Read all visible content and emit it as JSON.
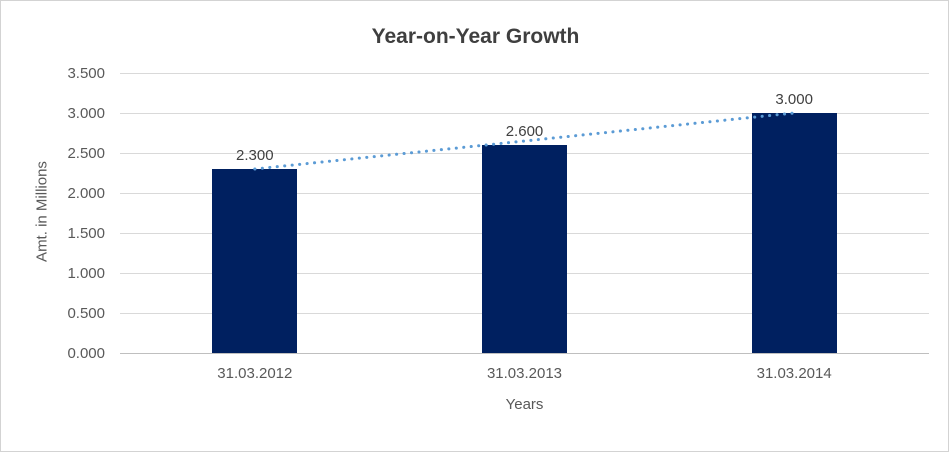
{
  "chart_data": {
    "type": "bar",
    "title": "Year-on-Year Growth",
    "xlabel": "Years",
    "ylabel": "Amt. in Millions",
    "categories": [
      "31.03.2012",
      "31.03.2013",
      "31.03.2014"
    ],
    "values": [
      2.3,
      2.6,
      3.0
    ],
    "value_labels": [
      "2.300",
      "2.600",
      "3.000"
    ],
    "ylim": [
      0,
      3.5
    ],
    "ytick_labels": [
      "0.000",
      "0.500",
      "1.000",
      "1.500",
      "2.000",
      "2.500",
      "3.000",
      "3.500"
    ],
    "grid": true,
    "legend": "none",
    "trendline": {
      "style": "dotted",
      "from_value": 2.3,
      "to_value": 3.0
    },
    "colors": {
      "bar": "#002060",
      "trendline": "#5b9bd5",
      "gridline": "#d9d9d9",
      "axis_line": "#bfbfbf",
      "title_text": "#3f3f3f",
      "tick_text": "#595959",
      "label_text": "#404040",
      "border": "#d3d3d3",
      "background": "#ffffff"
    }
  }
}
